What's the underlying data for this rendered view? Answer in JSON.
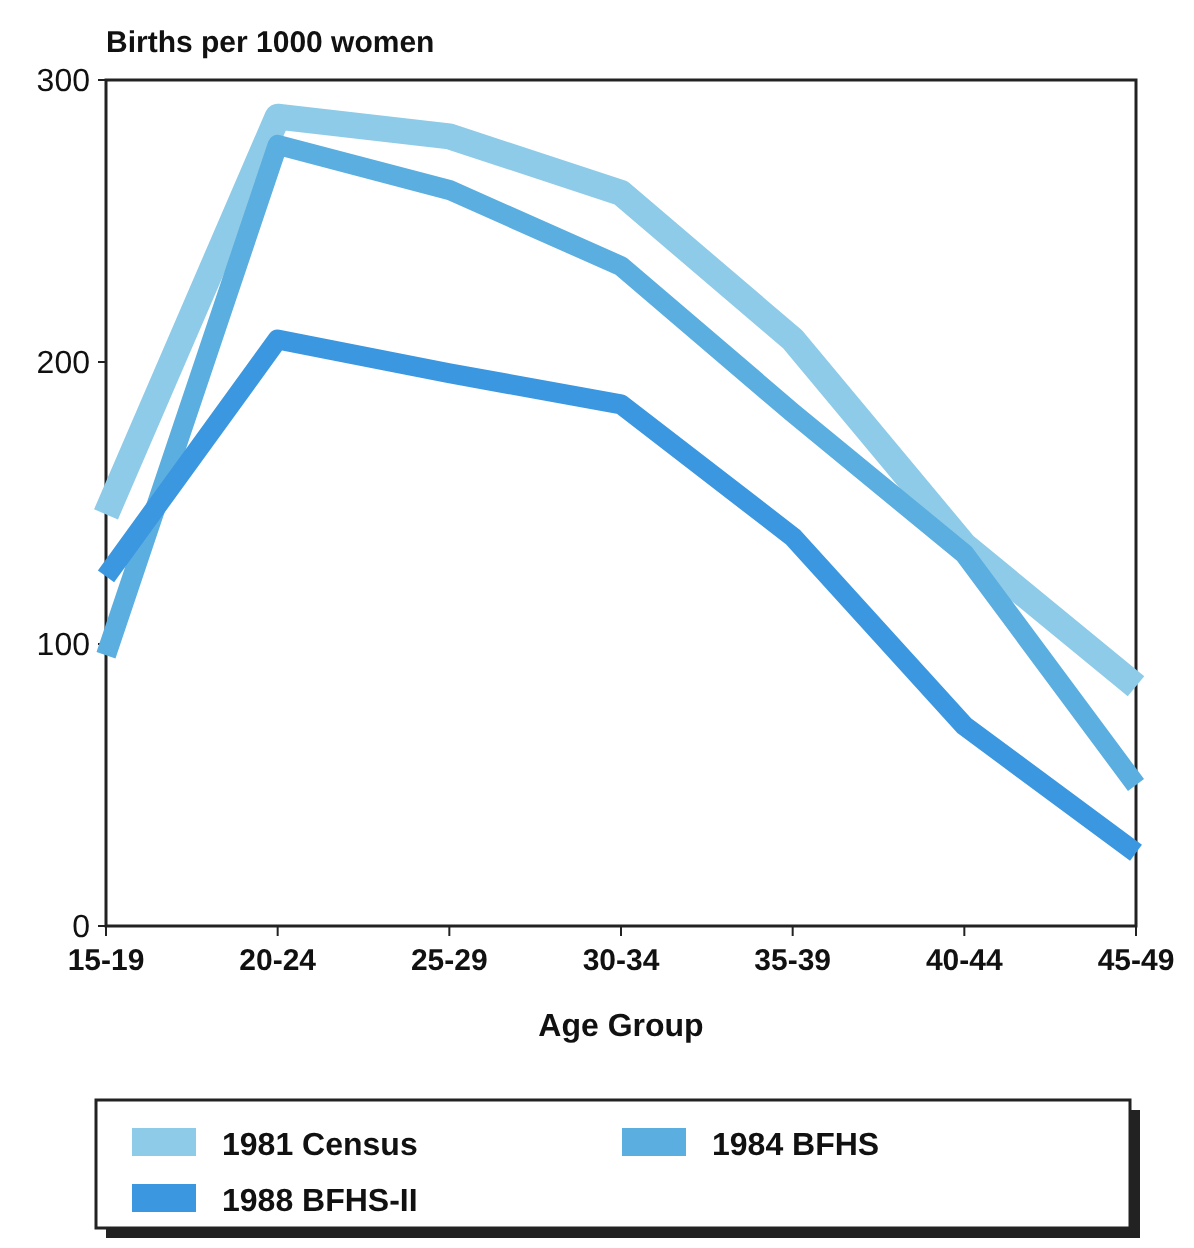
{
  "chart_data": {
    "type": "line",
    "ylabel": "Births per 1000 women",
    "xlabel": "Age Group",
    "categories": [
      "15-19",
      "20-24",
      "25-29",
      "30-34",
      "35-39",
      "40-44",
      "45-49"
    ],
    "ylim": [
      0,
      300
    ],
    "yticks": [
      0,
      100,
      200,
      300
    ],
    "legend": "bottom",
    "grid": false,
    "marker": "none",
    "line_style": "solid",
    "series": [
      {
        "name": "1981 Census",
        "color": "#8ecbe8",
        "values": [
          146,
          287,
          280,
          260,
          208,
          135,
          85
        ]
      },
      {
        "name": "1984 BFHS",
        "color": "#5aaee0",
        "values": [
          96,
          277,
          261,
          234,
          182,
          132,
          50
        ]
      },
      {
        "name": "1988 BFHS-II",
        "color": "#3a97e0",
        "values": [
          124,
          208,
          196,
          185,
          138,
          71,
          26
        ]
      }
    ]
  }
}
